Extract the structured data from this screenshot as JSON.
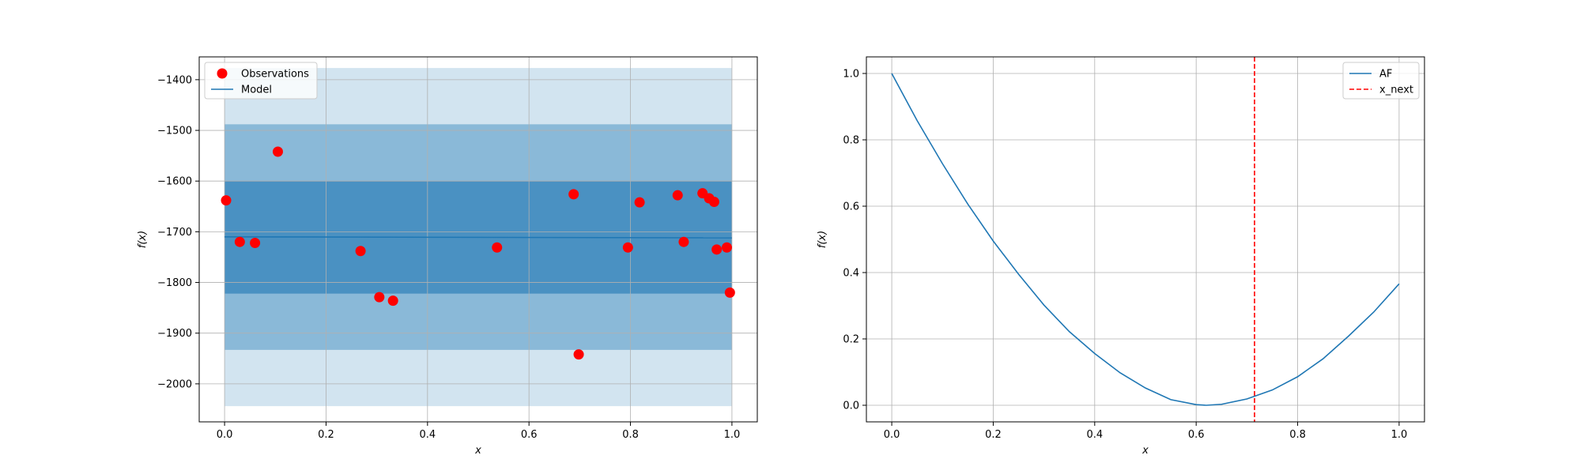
{
  "chart_data": [
    {
      "type": "scatter",
      "xlabel": "x",
      "ylabel": "f(x)",
      "xlim": [
        -0.05,
        1.05
      ],
      "ylim": [
        -2075,
        -1355
      ],
      "xticks": [
        0.0,
        0.2,
        0.4,
        0.6,
        0.8,
        1.0
      ],
      "xtick_labels": [
        "0.0",
        "0.2",
        "0.4",
        "0.6",
        "0.8",
        "1.0"
      ],
      "yticks": [
        -1400,
        -1500,
        -1600,
        -1700,
        -1800,
        -1900,
        -2000
      ],
      "ytick_labels": [
        "−1400",
        "−1500",
        "−1600",
        "−1700",
        "−1800",
        "−1900",
        "−2000"
      ],
      "grid": true,
      "legend": {
        "placement": "top-left",
        "entries": [
          "Observations",
          "Model"
        ]
      },
      "series": [
        {
          "name": "Observations",
          "kind": "scatter",
          "color": "#ff0000",
          "x": [
            0.003,
            0.03,
            0.06,
            0.105,
            0.268,
            0.305,
            0.332,
            0.537,
            0.688,
            0.698,
            0.795,
            0.818,
            0.893,
            0.905,
            0.942,
            0.955,
            0.965,
            0.97,
            0.99,
            0.996
          ],
          "y": [
            -1638,
            -1720,
            -1722,
            -1542,
            -1738,
            -1829,
            -1836,
            -1731,
            -1626,
            -1942,
            -1731,
            -1642,
            -1628,
            -1720,
            -1624,
            -1634,
            -1641,
            -1735,
            -1731,
            -1820
          ]
        },
        {
          "name": "Model",
          "kind": "line",
          "color": "#1f77b4",
          "x": [
            0.0,
            1.0
          ],
          "y": [
            -1710,
            -1712
          ]
        }
      ],
      "bands": [
        {
          "x": [
            0.0,
            1.0
          ],
          "lower": -2044,
          "upper": -1377,
          "color": "#1f77b4",
          "opacity": 0.2
        },
        {
          "x": [
            0.0,
            1.0
          ],
          "lower": -1933,
          "upper": -1488,
          "color": "#1f77b4",
          "opacity": 0.4
        },
        {
          "x": [
            0.0,
            1.0
          ],
          "lower": -1822,
          "upper": -1600,
          "color": "#1f77b4",
          "opacity": 0.6
        }
      ]
    },
    {
      "type": "line",
      "xlabel": "x",
      "ylabel": "f(x)",
      "xlim": [
        -0.05,
        1.05
      ],
      "ylim": [
        -0.05,
        1.05
      ],
      "xticks": [
        0.0,
        0.2,
        0.4,
        0.6,
        0.8,
        1.0
      ],
      "xtick_labels": [
        "0.0",
        "0.2",
        "0.4",
        "0.6",
        "0.8",
        "1.0"
      ],
      "yticks": [
        0.0,
        0.2,
        0.4,
        0.6,
        0.8,
        1.0
      ],
      "ytick_labels": [
        "0.0",
        "0.2",
        "0.4",
        "0.6",
        "0.8",
        "1.0"
      ],
      "grid": true,
      "legend": {
        "placement": "top-right",
        "entries": [
          "AF",
          "x_next"
        ]
      },
      "series": [
        {
          "name": "AF",
          "kind": "line",
          "color": "#1f77b4",
          "x": [
            0.0,
            0.05,
            0.1,
            0.15,
            0.2,
            0.25,
            0.3,
            0.35,
            0.4,
            0.45,
            0.5,
            0.55,
            0.6,
            0.62,
            0.65,
            0.7,
            0.75,
            0.8,
            0.85,
            0.9,
            0.95,
            1.0
          ],
          "y": [
            1.0,
            0.858,
            0.728,
            0.606,
            0.495,
            0.395,
            0.302,
            0.222,
            0.156,
            0.098,
            0.052,
            0.017,
            0.002,
            0.0,
            0.003,
            0.019,
            0.046,
            0.086,
            0.14,
            0.208,
            0.281,
            0.366
          ]
        },
        {
          "name": "x_next",
          "kind": "vline",
          "color": "#ff0000",
          "dashed": true,
          "x": 0.715
        }
      ]
    }
  ]
}
